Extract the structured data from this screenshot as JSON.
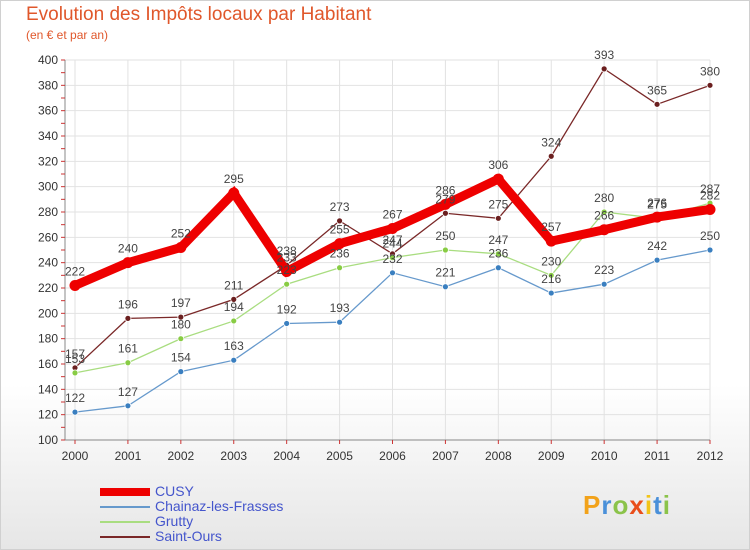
{
  "header": {
    "title": "Evolution des Impôts locaux par Habitant",
    "subtitle": "(en € et par an)"
  },
  "logo": {
    "text": "Proxiti",
    "colors": [
      "#f2a21a",
      "#4a90d9",
      "#8bc34a",
      "#e94e1b",
      "#f2c418",
      "#4a90d9",
      "#8bc34a"
    ]
  },
  "chart_data": {
    "type": "line",
    "title": "Evolution des Impôts locaux par Habitant",
    "subtitle": "(en € et par an)",
    "xlabel": "",
    "ylabel": "",
    "x": [
      "2000",
      "2001",
      "2002",
      "2003",
      "2004",
      "2005",
      "2006",
      "2007",
      "2008",
      "2009",
      "2010",
      "2011",
      "2012"
    ],
    "ylim": [
      100,
      400
    ],
    "yticks": [
      100,
      120,
      140,
      160,
      180,
      200,
      220,
      240,
      260,
      280,
      300,
      320,
      340,
      360,
      380,
      400
    ],
    "grid": true,
    "legend_position": "bottom-left",
    "series": [
      {
        "name": "CUSY",
        "color": "#ee0000",
        "marker": "#ee0000",
        "emphasis": true,
        "values": [
          222,
          240,
          252,
          295,
          233,
          255,
          267,
          286,
          306,
          257,
          266,
          276,
          282
        ]
      },
      {
        "name": "Chainaz-les-Frasses",
        "color": "#6699cc",
        "marker": "#3a7fc0",
        "emphasis": false,
        "values": [
          122,
          127,
          154,
          163,
          192,
          193,
          232,
          221,
          236,
          216,
          223,
          242,
          250
        ]
      },
      {
        "name": "Grutty",
        "color": "#a9dd80",
        "marker": "#88cc44",
        "emphasis": false,
        "values": [
          153,
          161,
          180,
          194,
          223,
          236,
          244,
          250,
          247,
          230,
          280,
          275,
          287
        ]
      },
      {
        "name": "Saint-Ours",
        "color": "#7a2828",
        "marker": "#6b1f1f",
        "emphasis": false,
        "values": [
          157,
          196,
          197,
          211,
          238,
          273,
          247,
          279,
          275,
          324,
          393,
          365,
          380
        ]
      }
    ]
  }
}
